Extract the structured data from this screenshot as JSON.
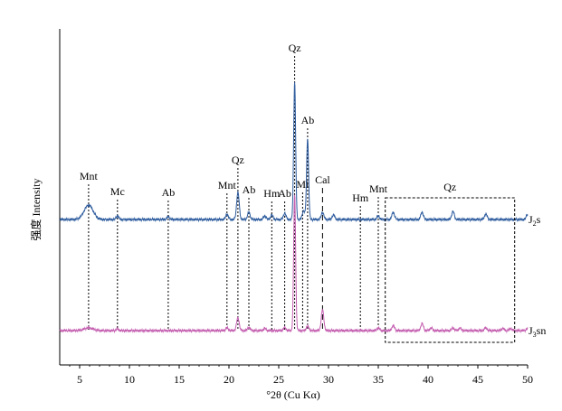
{
  "chart_data": {
    "type": "line",
    "title": "",
    "xlabel": "°2θ (Cu Kα)",
    "ylabel": "强度 Intensity",
    "xlim": [
      3,
      50
    ],
    "x_ticks": [
      5,
      10,
      15,
      20,
      25,
      30,
      35,
      40,
      45,
      50
    ],
    "x_tick_labels": [
      "5",
      "10",
      "15",
      "20",
      "25",
      "30",
      "35",
      "40",
      "45",
      "50"
    ],
    "y_ticks_shown": false,
    "grid": false,
    "legend": "none",
    "series": [
      {
        "name": "J2s",
        "label_main": "J",
        "label_sub": "2",
        "label_suffix": "s",
        "color": "#2e5c9e",
        "peaks": [
          {
            "x": 5.9,
            "y": 16
          },
          {
            "x": 8.8,
            "y": 4
          },
          {
            "x": 13.9,
            "y": 3
          },
          {
            "x": 19.8,
            "y": 6
          },
          {
            "x": 20.9,
            "y": 30
          },
          {
            "x": 22.0,
            "y": 8
          },
          {
            "x": 23.6,
            "y": 4
          },
          {
            "x": 24.3,
            "y": 5
          },
          {
            "x": 25.6,
            "y": 7
          },
          {
            "x": 26.6,
            "y": 152
          },
          {
            "x": 27.5,
            "y": 10
          },
          {
            "x": 27.9,
            "y": 90
          },
          {
            "x": 29.4,
            "y": 8
          },
          {
            "x": 30.5,
            "y": 5
          },
          {
            "x": 35.0,
            "y": 4
          },
          {
            "x": 36.5,
            "y": 8
          },
          {
            "x": 39.4,
            "y": 8
          },
          {
            "x": 42.5,
            "y": 9
          },
          {
            "x": 45.8,
            "y": 6
          },
          {
            "x": 50.0,
            "y": 6
          }
        ]
      },
      {
        "name": "J3sn",
        "label_main": "J",
        "label_sub": "3",
        "label_suffix": "sn",
        "color": "#c45fb0",
        "peaks": [
          {
            "x": 5.9,
            "y": 5
          },
          {
            "x": 8.8,
            "y": 3
          },
          {
            "x": 19.8,
            "y": 5
          },
          {
            "x": 20.9,
            "y": 24
          },
          {
            "x": 22.0,
            "y": 6
          },
          {
            "x": 23.6,
            "y": 4
          },
          {
            "x": 25.6,
            "y": 6
          },
          {
            "x": 26.6,
            "y": 250
          },
          {
            "x": 27.9,
            "y": 8
          },
          {
            "x": 29.4,
            "y": 38
          },
          {
            "x": 35.0,
            "y": 5
          },
          {
            "x": 36.5,
            "y": 9
          },
          {
            "x": 39.4,
            "y": 13
          },
          {
            "x": 40.3,
            "y": 5
          },
          {
            "x": 42.5,
            "y": 5
          },
          {
            "x": 43.2,
            "y": 5
          },
          {
            "x": 45.8,
            "y": 5
          },
          {
            "x": 47.5,
            "y": 4
          },
          {
            "x": 48.3,
            "y": 4
          },
          {
            "x": 50.0,
            "y": 4
          }
        ]
      }
    ],
    "annotations": [
      {
        "text": "Mnt",
        "x": 5.9
      },
      {
        "text": "Mc",
        "x": 8.8
      },
      {
        "text": "Ab",
        "x": 13.9
      },
      {
        "text": "Mnt",
        "x": 19.8
      },
      {
        "text": "Qz",
        "x": 20.9
      },
      {
        "text": "Ab",
        "x": 22.0
      },
      {
        "text": "Hm",
        "x": 24.3
      },
      {
        "text": "Ab",
        "x": 25.6
      },
      {
        "text": "Qz",
        "x": 26.6
      },
      {
        "text": "Mi",
        "x": 27.4
      },
      {
        "text": "Ab",
        "x": 27.9
      },
      {
        "text": "Cal",
        "x": 29.4
      },
      {
        "text": "Hm",
        "x": 33.2
      },
      {
        "text": "Mnt",
        "x": 35.0
      },
      {
        "text": "Qz",
        "x": 42.2
      }
    ],
    "box_region": {
      "x_range": [
        35.7,
        48.7
      ]
    }
  }
}
